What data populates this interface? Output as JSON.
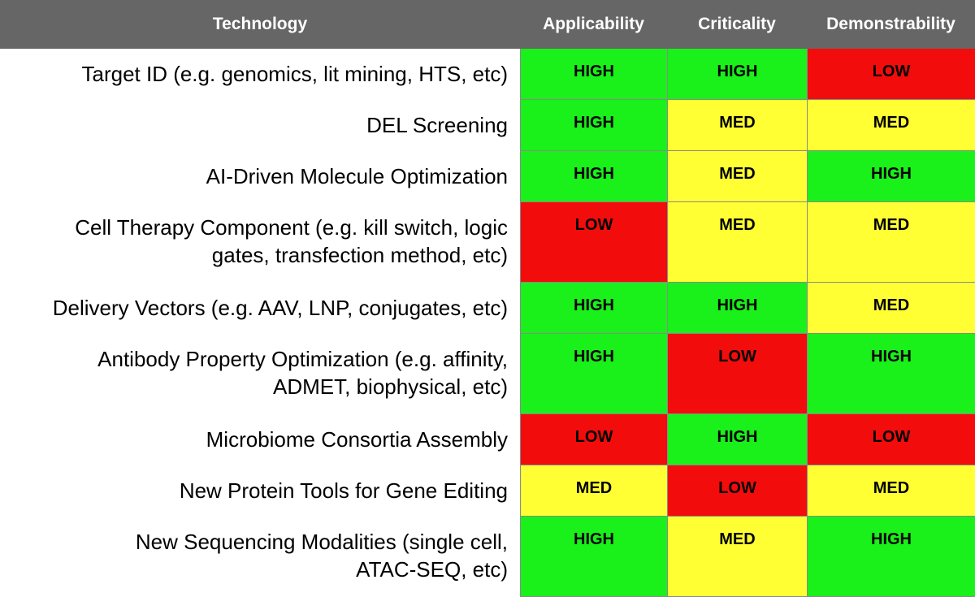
{
  "header": {
    "technology": "Technology",
    "applicability": "Applicability",
    "criticality": "Criticality",
    "demonstrability": "Demonstrability"
  },
  "colors": {
    "header_bg": "#666666",
    "HIGH": "#1af01a",
    "MED": "#ffff33",
    "LOW": "#f20c0c"
  },
  "rows": [
    {
      "technology_lines": [
        "Target ID (e.g. genomics, lit mining, HTS, etc)"
      ],
      "applicability": "HIGH",
      "criticality": "HIGH",
      "demonstrability": "LOW"
    },
    {
      "technology_lines": [
        "DEL Screening"
      ],
      "applicability": "HIGH",
      "criticality": "MED",
      "demonstrability": "MED"
    },
    {
      "technology_lines": [
        "AI-Driven Molecule Optimization"
      ],
      "applicability": "HIGH",
      "criticality": "MED",
      "demonstrability": "HIGH"
    },
    {
      "technology_lines": [
        "Cell Therapy Component (e.g. kill switch, logic",
        "gates, transfection method, etc)"
      ],
      "applicability": "LOW",
      "criticality": "MED",
      "demonstrability": "MED"
    },
    {
      "technology_lines": [
        "Delivery Vectors (e.g. AAV, LNP, conjugates, etc)"
      ],
      "applicability": "HIGH",
      "criticality": "HIGH",
      "demonstrability": "MED"
    },
    {
      "technology_lines": [
        "Antibody Property Optimization (e.g. affinity,",
        "ADMET, biophysical, etc)"
      ],
      "applicability": "HIGH",
      "criticality": "LOW",
      "demonstrability": "HIGH"
    },
    {
      "technology_lines": [
        "Microbiome Consortia Assembly"
      ],
      "applicability": "LOW",
      "criticality": "HIGH",
      "demonstrability": "LOW"
    },
    {
      "technology_lines": [
        "New Protein Tools for Gene Editing"
      ],
      "applicability": "MED",
      "criticality": "LOW",
      "demonstrability": "MED"
    },
    {
      "technology_lines": [
        "New Sequencing Modalities (single cell,",
        "ATAC-SEQ, etc)"
      ],
      "applicability": "HIGH",
      "criticality": "MED",
      "demonstrability": "HIGH"
    }
  ]
}
